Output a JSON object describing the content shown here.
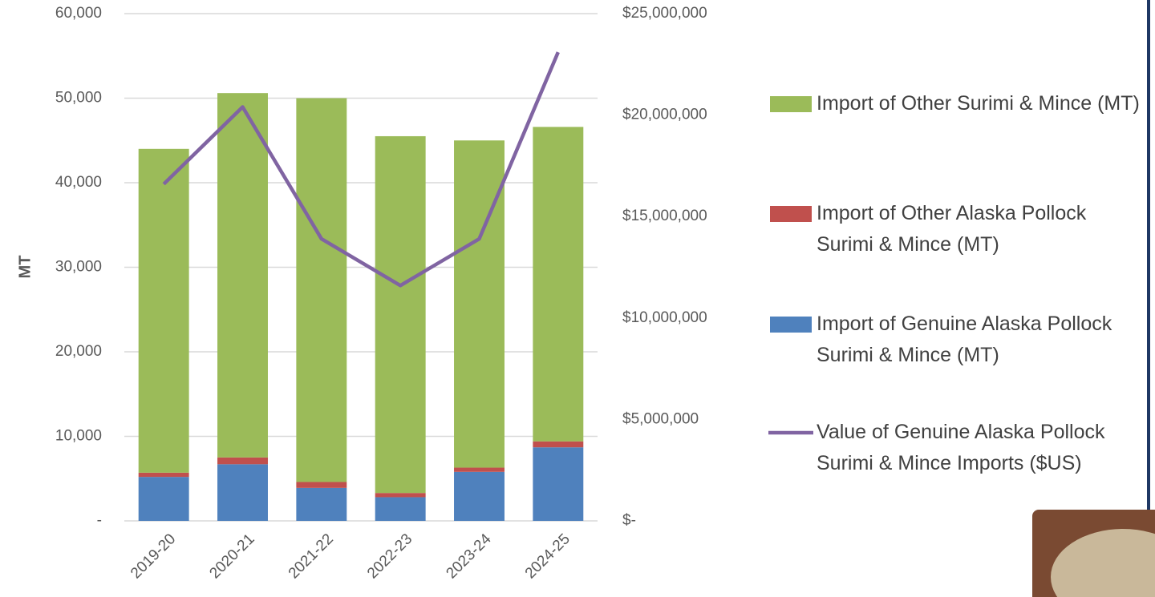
{
  "chart_data": {
    "type": "bar",
    "stacked": true,
    "y_label": "MT",
    "categories": [
      "2019-20",
      "2020-21",
      "2021-22",
      "2022-23",
      "2023-24",
      "2024-25"
    ],
    "series": [
      {
        "name": "Import of Genuine Alaska Pollock Surimi & Mince (MT)",
        "color": "#4f81bd",
        "values": [
          5200,
          6700,
          3900,
          2800,
          5800,
          8700
        ]
      },
      {
        "name": "Import of Other Alaska Pollock Surimi & Mince (MT)",
        "color": "#c0504d",
        "values": [
          500,
          800,
          700,
          500,
          500,
          700
        ]
      },
      {
        "name": "Import of Other Surimi & Mince (MT)",
        "color": "#9bbb59",
        "values": [
          38300,
          43100,
          45400,
          42200,
          38700,
          37200
        ]
      },
      {
        "name": "Value of Genuine Alaska Pollock Surimi & Mince Imports ($US)",
        "color": "#8064a2",
        "type": "line",
        "axis": "y2",
        "values": [
          16600000,
          20400000,
          13900000,
          11600000,
          13900000,
          23100000
        ]
      }
    ],
    "legend_order": [
      2,
      1,
      0,
      3
    ],
    "ylim": [
      0,
      60000
    ],
    "yticks": [
      {
        "value": 0,
        "label": "-"
      },
      {
        "value": 10000,
        "label": "10,000"
      },
      {
        "value": 20000,
        "label": "20,000"
      },
      {
        "value": 30000,
        "label": "30,000"
      },
      {
        "value": 40000,
        "label": "40,000"
      },
      {
        "value": 50000,
        "label": "50,000"
      },
      {
        "value": 60000,
        "label": "60,000"
      }
    ],
    "y2lim": [
      0,
      25000000
    ],
    "y2ticks": [
      {
        "value": 0,
        "label": "$-"
      },
      {
        "value": 5000000,
        "label": "$5,000,000"
      },
      {
        "value": 10000000,
        "label": "$10,000,000"
      },
      {
        "value": 15000000,
        "label": "$15,000,000"
      },
      {
        "value": 20000000,
        "label": "$20,000,000"
      },
      {
        "value": 25000000,
        "label": "$25,000,000"
      }
    ],
    "grid": true,
    "legend": "right"
  }
}
